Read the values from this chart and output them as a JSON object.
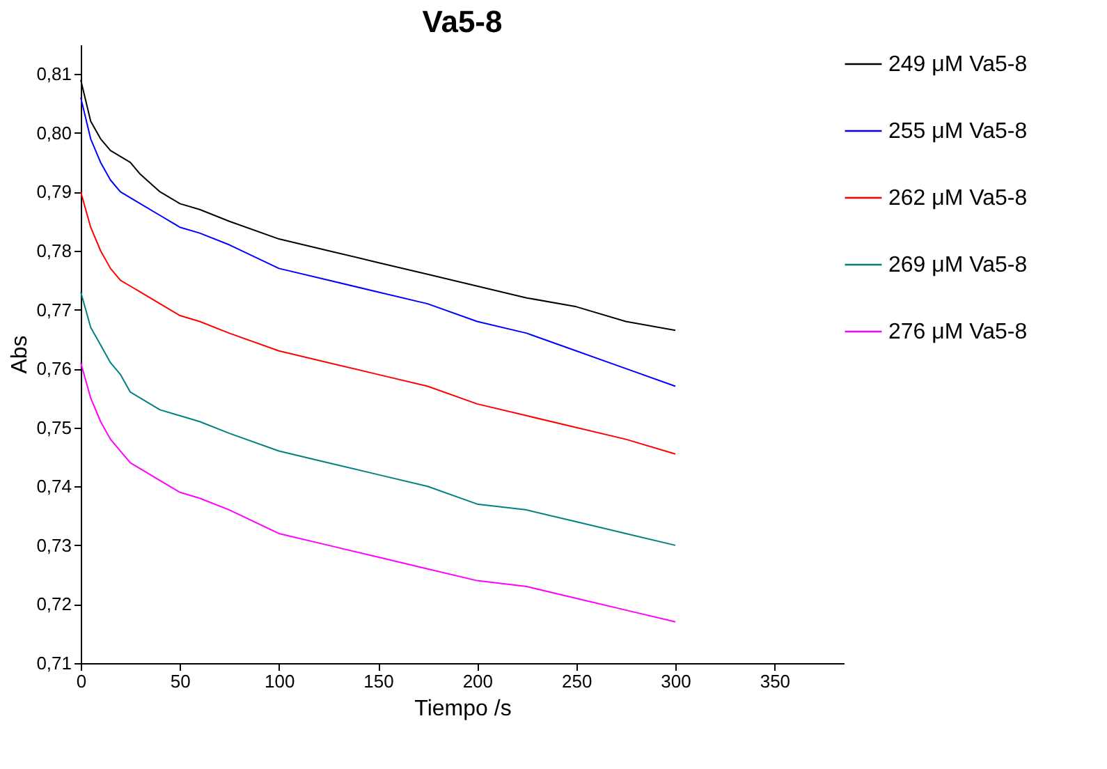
{
  "chart_data": {
    "type": "line",
    "title": "Va5-8",
    "xlabel": "Tiempo  /s",
    "ylabel": "Abs",
    "xlim": [
      0,
      385
    ],
    "xticks": [
      0,
      50,
      100,
      150,
      200,
      250,
      300,
      350
    ],
    "ylim": [
      0.71,
      0.815
    ],
    "yticks": [
      {
        "value": 0.71,
        "label": "0,71"
      },
      {
        "value": 0.72,
        "label": "0,72"
      },
      {
        "value": 0.73,
        "label": "0,73"
      },
      {
        "value": 0.74,
        "label": "0,74"
      },
      {
        "value": 0.75,
        "label": "0,75"
      },
      {
        "value": 0.76,
        "label": "0,76"
      },
      {
        "value": 0.77,
        "label": "0,77"
      },
      {
        "value": 0.78,
        "label": "0,78"
      },
      {
        "value": 0.79,
        "label": "0,79"
      },
      {
        "value": 0.8,
        "label": "0,80"
      },
      {
        "value": 0.81,
        "label": "0,81"
      }
    ],
    "x": [
      0,
      5,
      10,
      15,
      20,
      25,
      30,
      40,
      50,
      60,
      75,
      100,
      125,
      150,
      175,
      200,
      225,
      250,
      275,
      300
    ],
    "grid": false,
    "legend": "right",
    "marker": "none",
    "line_style": "solid",
    "series": [
      {
        "name": "249 μM Va5-8",
        "color": "#000000",
        "values": [
          0.809,
          0.802,
          0.799,
          0.797,
          0.796,
          0.795,
          0.793,
          0.79,
          0.788,
          0.787,
          0.785,
          0.782,
          0.78,
          0.778,
          0.776,
          0.774,
          0.772,
          0.7705,
          0.768,
          0.7665
        ]
      },
      {
        "name": "255 μM Va5-8",
        "color": "#0000ff",
        "values": [
          0.806,
          0.799,
          0.795,
          0.792,
          0.79,
          0.789,
          0.788,
          0.786,
          0.784,
          0.783,
          0.781,
          0.777,
          0.775,
          0.773,
          0.771,
          0.768,
          0.766,
          0.763,
          0.76,
          0.757
        ]
      },
      {
        "name": "262 μM Va5-8",
        "color": "#ff0000",
        "values": [
          0.79,
          0.784,
          0.78,
          0.777,
          0.775,
          0.774,
          0.773,
          0.771,
          0.769,
          0.768,
          0.766,
          0.763,
          0.761,
          0.759,
          0.757,
          0.754,
          0.752,
          0.75,
          0.748,
          0.7455
        ]
      },
      {
        "name": "269 μM Va5-8",
        "color": "#008080",
        "values": [
          0.773,
          0.767,
          0.764,
          0.761,
          0.759,
          0.756,
          0.755,
          0.753,
          0.752,
          0.751,
          0.749,
          0.746,
          0.744,
          0.742,
          0.74,
          0.737,
          0.736,
          0.734,
          0.732,
          0.73
        ]
      },
      {
        "name": "276 μM Va5-8",
        "color": "#ff00ff",
        "values": [
          0.761,
          0.755,
          0.751,
          0.748,
          0.746,
          0.744,
          0.743,
          0.741,
          0.739,
          0.738,
          0.736,
          0.732,
          0.73,
          0.728,
          0.726,
          0.724,
          0.723,
          0.721,
          0.719,
          0.717
        ]
      }
    ]
  }
}
